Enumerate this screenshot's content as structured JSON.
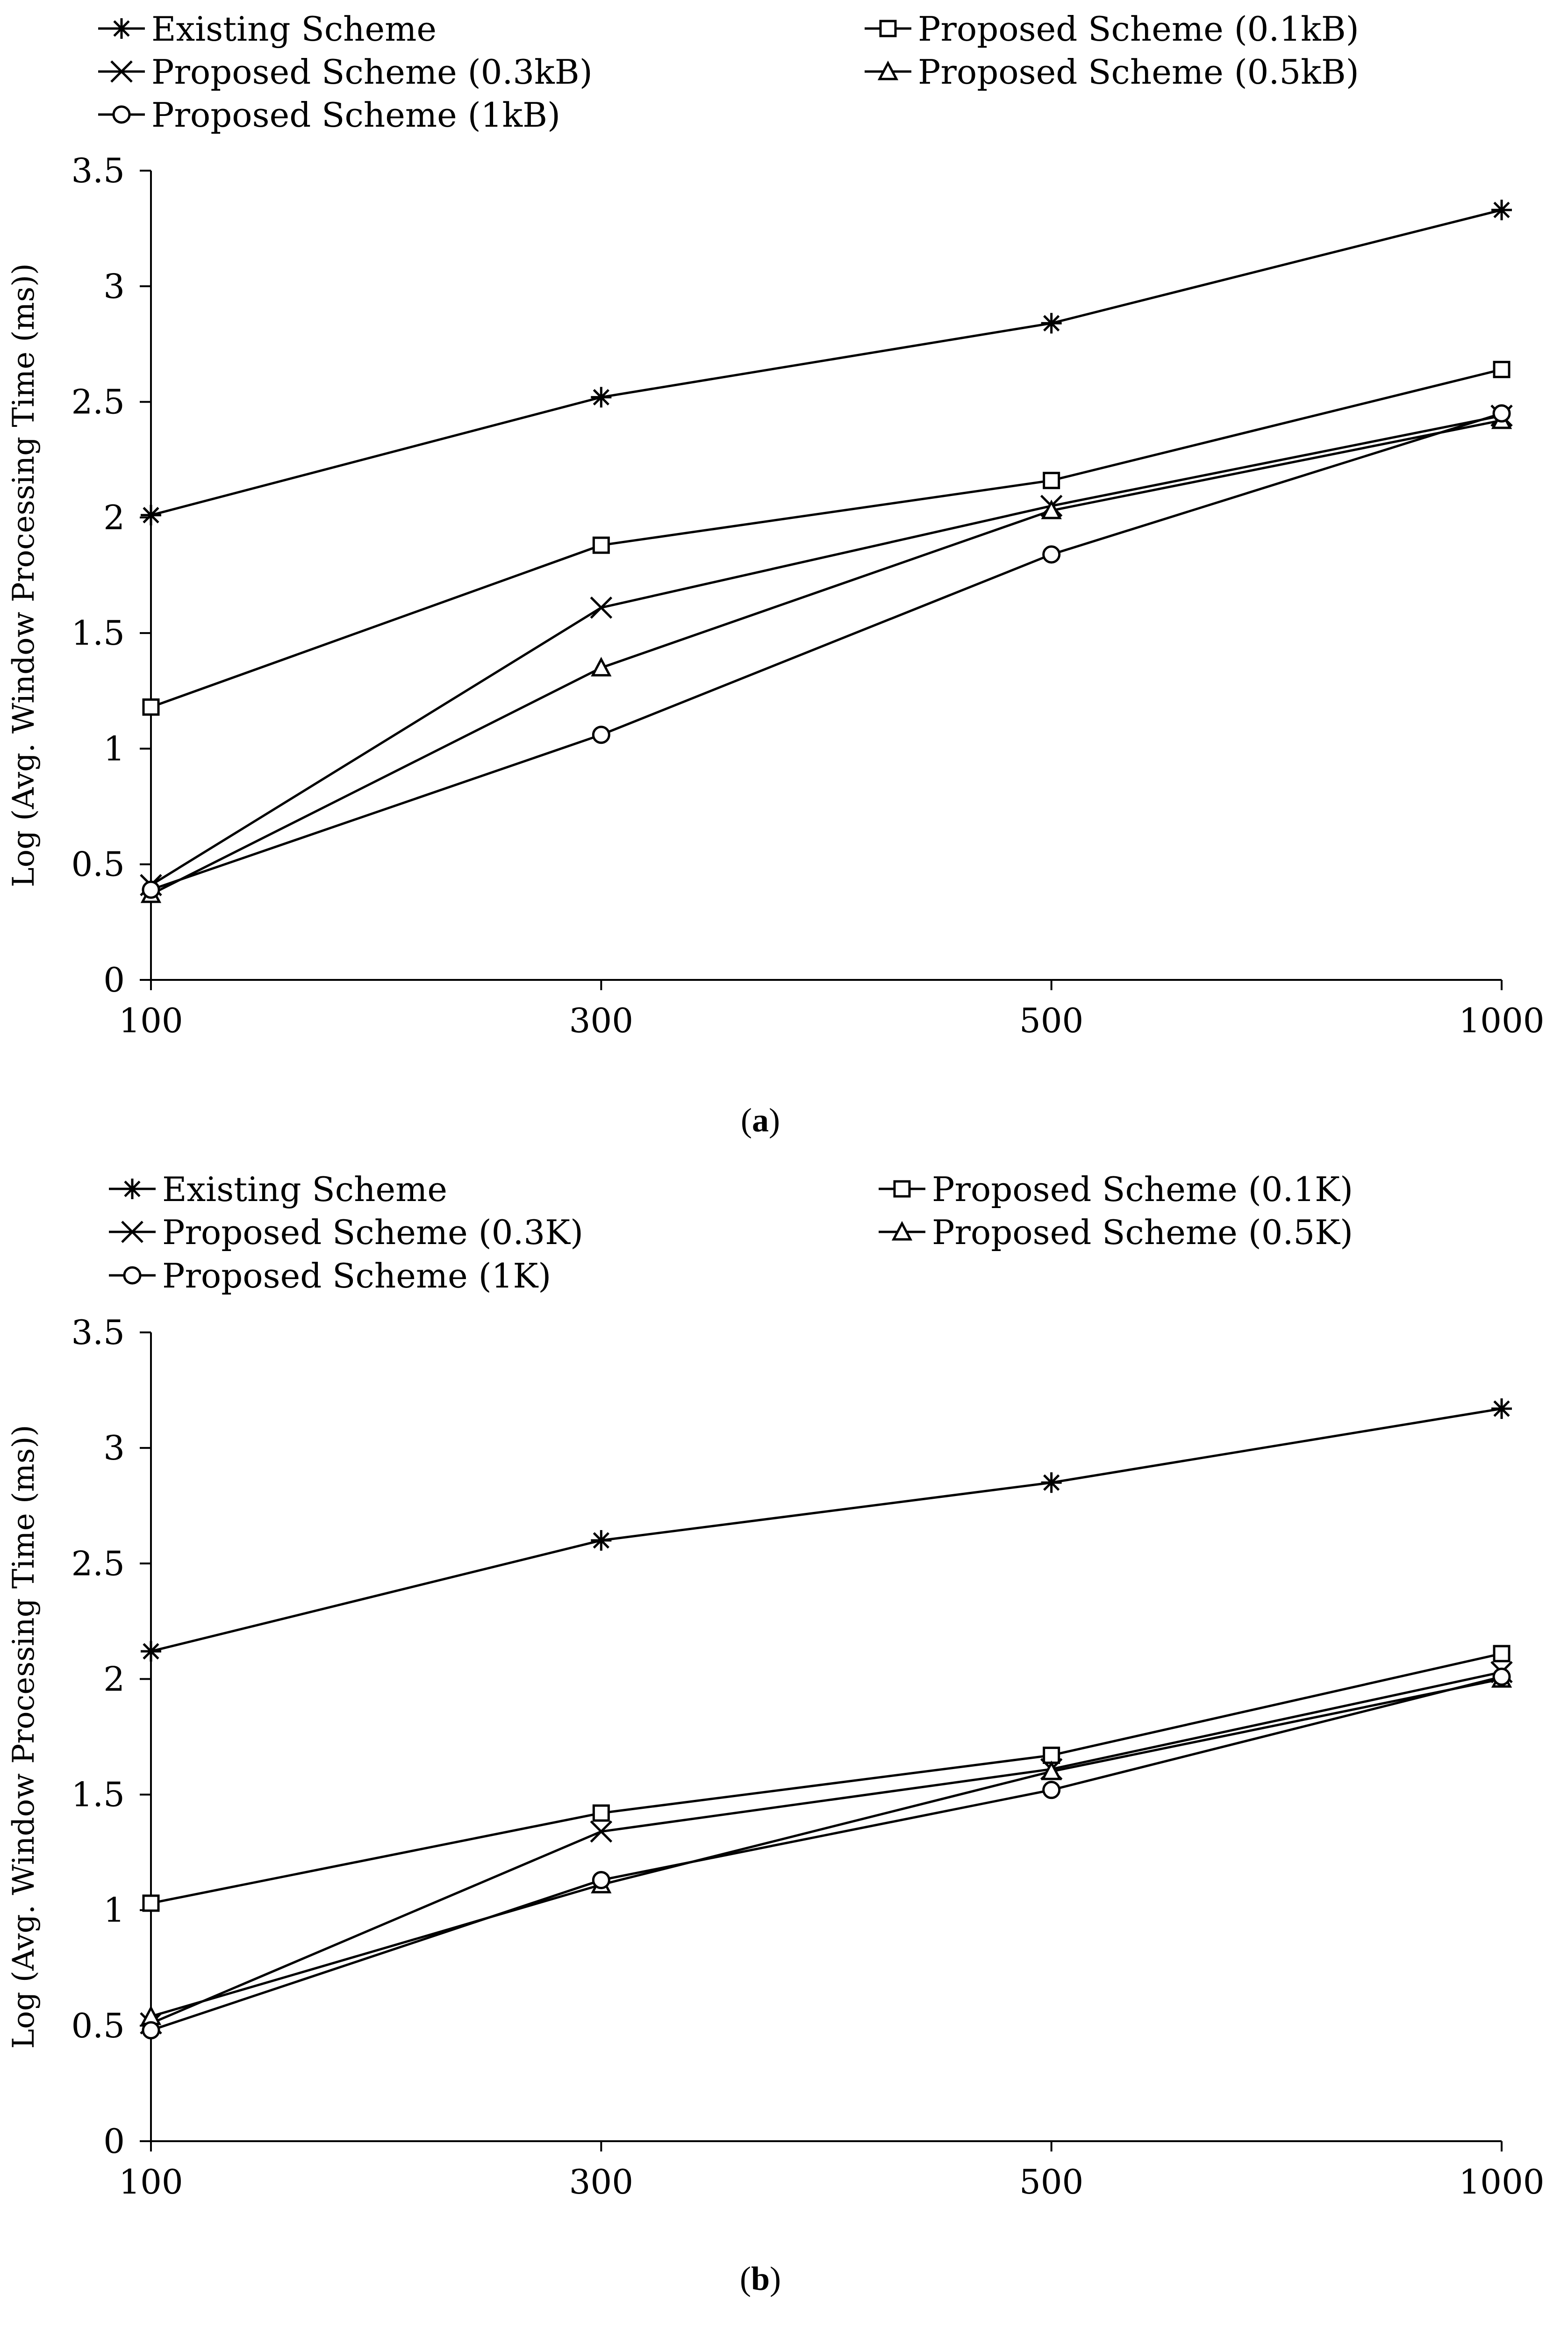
{
  "chart_data": [
    {
      "type": "line",
      "caption": "a",
      "categories": [
        "100",
        "300",
        "500",
        "1000"
      ],
      "ylabel": "Log (Avg. Window Processing Time (ms))",
      "yticks": [
        "0",
        "0.5",
        "1",
        "1.5",
        "2",
        "2.5",
        "3",
        "3.5"
      ],
      "ylim": [
        0,
        3.5
      ],
      "grid": false,
      "legend_position": "top",
      "series": [
        {
          "name": "Existing Scheme",
          "marker": "asterisk",
          "values": [
            2.01,
            2.52,
            2.84,
            3.33
          ]
        },
        {
          "name": "Proposed Scheme (0.1kB)",
          "marker": "square",
          "values": [
            1.18,
            1.88,
            2.16,
            2.64
          ]
        },
        {
          "name": "Proposed Scheme (0.3kB)",
          "marker": "x",
          "values": [
            0.41,
            1.61,
            2.05,
            2.44
          ]
        },
        {
          "name": "Proposed Scheme (0.5kB)",
          "marker": "triangle",
          "values": [
            0.37,
            1.35,
            2.03,
            2.42
          ]
        },
        {
          "name": "Proposed Scheme (1kB)",
          "marker": "circle",
          "values": [
            0.39,
            1.06,
            1.84,
            2.45
          ]
        }
      ]
    },
    {
      "type": "line",
      "caption": "b",
      "categories": [
        "100",
        "300",
        "500",
        "1000"
      ],
      "ylabel": "Log (Avg. Window Processing Time (ms))",
      "yticks": [
        "0",
        "0.5",
        "1",
        "1.5",
        "2",
        "2.5",
        "3",
        "3.5"
      ],
      "ylim": [
        0,
        3.5
      ],
      "grid": false,
      "legend_position": "top",
      "series": [
        {
          "name": "Existing Scheme",
          "marker": "asterisk",
          "values": [
            2.12,
            2.6,
            2.85,
            3.17
          ]
        },
        {
          "name": "Proposed Scheme (0.1K)",
          "marker": "square",
          "values": [
            1.03,
            1.42,
            1.67,
            2.11
          ]
        },
        {
          "name": "Proposed Scheme (0.3K)",
          "marker": "x",
          "values": [
            0.51,
            1.34,
            1.61,
            2.03
          ]
        },
        {
          "name": "Proposed Scheme (0.5K)",
          "marker": "triangle",
          "values": [
            0.54,
            1.11,
            1.6,
            2.0
          ]
        },
        {
          "name": "Proposed Scheme (1K)",
          "marker": "circle",
          "values": [
            0.48,
            1.13,
            1.52,
            2.01
          ]
        }
      ]
    }
  ]
}
